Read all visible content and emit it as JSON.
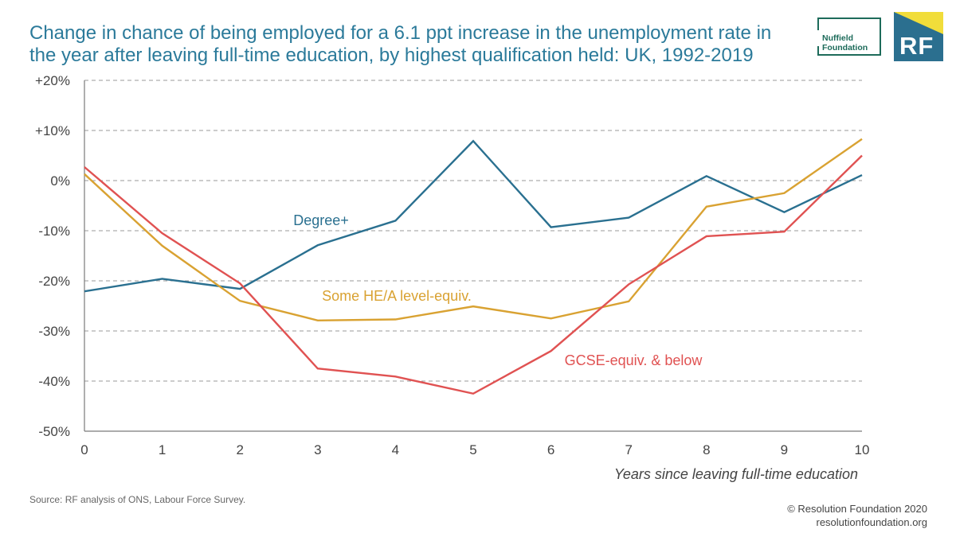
{
  "header": {
    "title_line1": "Change in chance of being employed for a 6.1 ppt increase in the unemployment rate in",
    "title_line2": "the year after leaving full-time education, by highest qualification held: UK, 1992-2019"
  },
  "logos": {
    "nuffield_line1": "Nuffield",
    "nuffield_line2": "Foundation",
    "rf": "RF"
  },
  "footer": {
    "source": "Source: RF analysis of ONS, Labour Force Survey.",
    "copyright": "© Resolution Foundation 2020",
    "website": "resolutionfoundation.org"
  },
  "chart_data": {
    "type": "line",
    "title": "Change in chance of being employed for a 6.1 ppt increase in the unemployment rate in the year after leaving full-time education, by highest qualification held: UK, 1992-2019",
    "xlabel": "Years since leaving full-time education",
    "ylabel": "",
    "x": [
      0,
      1,
      2,
      3,
      4,
      5,
      6,
      7,
      8,
      9,
      10
    ],
    "xlim": [
      0,
      10
    ],
    "ylim": [
      -50,
      20
    ],
    "y_ticks": [
      20,
      10,
      0,
      -10,
      -20,
      -30,
      -40,
      -50
    ],
    "y_tick_labels": [
      "+20%",
      "+10%",
      "0%",
      "-10%",
      "-20%",
      "-30%",
      "-40%",
      "-50%"
    ],
    "x_tick_labels": [
      "0",
      "1",
      "2",
      "3",
      "4",
      "5",
      "6",
      "7",
      "8",
      "9",
      "10"
    ],
    "grid": "horizontal-dashed",
    "series": [
      {
        "name": "Degree+",
        "color": "#2a7090",
        "values": [
          -22.1,
          -19.6,
          -21.6,
          -12.9,
          -8.0,
          7.9,
          -9.3,
          -7.4,
          0.9,
          -6.3,
          1.1
        ]
      },
      {
        "name": "Some HE/A level-equiv.",
        "color": "#d9a232",
        "values": [
          1.3,
          -13.0,
          -24.0,
          -27.9,
          -27.7,
          -25.1,
          -27.5,
          -24.1,
          -5.2,
          -2.5,
          8.3
        ]
      },
      {
        "name": "GCSE-equiv. & below",
        "color": "#e05252",
        "values": [
          2.7,
          -10.5,
          -20.5,
          -37.5,
          -39.1,
          -42.5,
          -34.0,
          -20.7,
          -11.1,
          -10.2,
          5.0
        ]
      }
    ]
  }
}
